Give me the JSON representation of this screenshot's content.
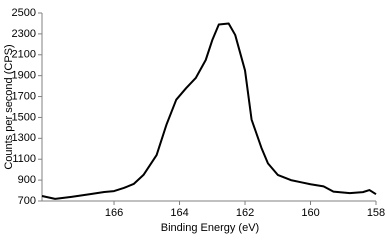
{
  "chart_data": {
    "type": "line",
    "x_label": "Binding Energy (eV)",
    "y_label": "Counts per second (CPS)",
    "x": [
      168.2,
      167.8,
      167.3,
      166.7,
      166.3,
      166.0,
      165.7,
      165.4,
      165.1,
      164.7,
      164.4,
      164.1,
      163.8,
      163.5,
      163.2,
      163.0,
      162.8,
      162.5,
      162.3,
      162.0,
      161.8,
      161.5,
      161.3,
      161.0,
      160.6,
      160.3,
      160.0,
      159.6,
      159.3,
      158.8,
      158.4,
      158.2,
      158.0
    ],
    "series": [
      {
        "color": "#000000",
        "values": [
          748,
          720,
          740,
          767,
          786,
          795,
          825,
          863,
          950,
          1140,
          1430,
          1670,
          1780,
          1880,
          2050,
          2240,
          2390,
          2400,
          2290,
          1950,
          1480,
          1210,
          1060,
          950,
          900,
          880,
          860,
          840,
          790,
          775,
          785,
          805,
          765
        ]
      }
    ],
    "xlim": [
      168.2,
      158
    ],
    "xticks": [
      166,
      164,
      162,
      160,
      158
    ],
    "ylim": [
      700,
      2500
    ],
    "yticks": [
      700,
      900,
      1100,
      1300,
      1500,
      1700,
      1900,
      2100,
      2300,
      2500
    ]
  }
}
